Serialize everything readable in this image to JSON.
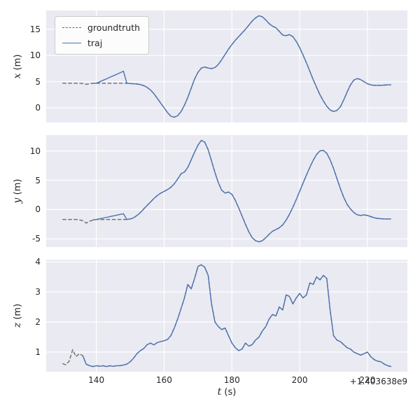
{
  "chart_data": {
    "type": "line",
    "title": "",
    "xlabel": "t (s)",
    "x_offset_text": "+1.403638e9",
    "xlim": [
      125.2,
      231.8
    ],
    "xticks": [
      140,
      160,
      180,
      200,
      220
    ],
    "grid": true,
    "colors": {
      "axes_bg": "#EAEAF2",
      "grid": "#FFFFFF",
      "groundtruth": "#6a6a6a",
      "traj": "#4C72B0",
      "text": "#262626"
    },
    "legend": {
      "position": "upper left",
      "entries": [
        {
          "label": "groundtruth",
          "color": "#6a6a6a",
          "dash": true
        },
        {
          "label": "traj",
          "color": "#4C72B0",
          "dash": false
        }
      ]
    },
    "subplots": [
      {
        "ylabel": "x (m)",
        "ylim": [
          -2.8,
          18.6
        ],
        "yticks": [
          0,
          5,
          10,
          15
        ],
        "show_x_tick_labels": false,
        "series": [
          {
            "name": "groundtruth",
            "color": "#6a6a6a",
            "dash": true,
            "t_start": 130,
            "t_step": 1,
            "y": [
              4.7,
              4.7,
              4.7,
              4.7,
              4.7,
              4.7,
              4.65,
              4.5,
              4.6,
              4.7,
              4.7,
              4.7,
              4.7,
              4.7,
              4.7,
              4.7,
              4.7,
              4.7,
              4.7,
              4.7,
              4.65,
              4.6,
              4.55,
              4.45,
              4.25,
              3.9,
              3.4,
              2.7,
              1.8,
              0.9,
              0.0,
              -0.9,
              -1.6,
              -1.8,
              -1.5,
              -0.7,
              0.5,
              2.0,
              3.8,
              5.5,
              6.8,
              7.6,
              7.8,
              7.6,
              7.5,
              7.7,
              8.3,
              9.2,
              10.2,
              11.2,
              12.1,
              12.9,
              13.6,
              14.3,
              15.0,
              15.8,
              16.6,
              17.2,
              17.6,
              17.4,
              16.8,
              16.1,
              15.6,
              15.3,
              14.6,
              13.9,
              13.8,
              14.0,
              13.6,
              12.7,
              11.5,
              10.1,
              8.6,
              7.0,
              5.4,
              3.9,
              2.5,
              1.3,
              0.3,
              -0.4,
              -0.7,
              -0.5,
              0.2,
              1.5,
              3.0,
              4.4,
              5.3,
              5.6,
              5.4,
              5.0,
              4.6,
              4.4,
              4.3,
              4.3,
              4.3,
              4.35,
              4.4,
              4.4
            ]
          },
          {
            "name": "traj",
            "color": "#4C72B0",
            "dash": false,
            "t_start": 139,
            "t_step": 1,
            "y": [
              4.7,
              4.7,
              4.98,
              5.27,
              5.55,
              5.84,
              6.12,
              6.41,
              6.7,
              7.0,
              4.7,
              4.65,
              4.6,
              4.55,
              4.45,
              4.25,
              3.9,
              3.4,
              2.7,
              1.8,
              0.9,
              0.0,
              -0.9,
              -1.6,
              -1.8,
              -1.5,
              -0.7,
              0.5,
              2.0,
              3.8,
              5.5,
              6.8,
              7.6,
              7.8,
              7.6,
              7.5,
              7.7,
              8.3,
              9.2,
              10.2,
              11.2,
              12.1,
              12.9,
              13.6,
              14.3,
              15.0,
              15.8,
              16.6,
              17.2,
              17.6,
              17.4,
              16.8,
              16.1,
              15.6,
              15.3,
              14.6,
              13.9,
              13.8,
              14.0,
              13.6,
              12.7,
              11.5,
              10.1,
              8.6,
              7.0,
              5.4,
              3.9,
              2.5,
              1.3,
              0.3,
              -0.4,
              -0.7,
              -0.5,
              0.2,
              1.5,
              3.0,
              4.4,
              5.3,
              5.6,
              5.4,
              5.0,
              4.6,
              4.4,
              4.3,
              4.3,
              4.3,
              4.35,
              4.4,
              4.4
            ]
          }
        ]
      },
      {
        "ylabel": "y (m)",
        "ylim": [
          -6.4,
          12.7
        ],
        "yticks": [
          -5,
          0,
          5,
          10
        ],
        "show_x_tick_labels": false,
        "series": [
          {
            "name": "groundtruth",
            "color": "#6a6a6a",
            "dash": true,
            "t_start": 130,
            "t_step": 1,
            "y": [
              -1.7,
              -1.7,
              -1.7,
              -1.7,
              -1.7,
              -1.75,
              -1.9,
              -2.3,
              -2.0,
              -1.8,
              -1.7,
              -1.7,
              -1.7,
              -1.7,
              -1.7,
              -1.7,
              -1.7,
              -1.7,
              -1.7,
              -1.7,
              -1.6,
              -1.4,
              -1.0,
              -0.5,
              0.1,
              0.7,
              1.3,
              1.9,
              2.4,
              2.8,
              3.1,
              3.4,
              3.8,
              4.4,
              5.2,
              6.1,
              6.4,
              7.2,
              8.5,
              9.8,
              11.0,
              11.8,
              11.5,
              10.2,
              8.3,
              6.3,
              4.6,
              3.3,
              2.8,
              3.0,
              2.6,
              1.6,
              0.3,
              -1.1,
              -2.5,
              -3.8,
              -4.8,
              -5.3,
              -5.5,
              -5.3,
              -4.8,
              -4.2,
              -3.7,
              -3.4,
              -3.1,
              -2.6,
              -1.8,
              -0.8,
              0.4,
              1.7,
              3.1,
              4.5,
              5.9,
              7.2,
              8.4,
              9.4,
              10.0,
              10.1,
              9.6,
              8.5,
              7.0,
              5.3,
              3.6,
              2.1,
              0.9,
              0.1,
              -0.5,
              -0.9,
              -1.0,
              -0.9,
              -1.0,
              -1.2,
              -1.4,
              -1.5,
              -1.55,
              -1.6,
              -1.6,
              -1.6
            ]
          },
          {
            "name": "traj",
            "color": "#4C72B0",
            "dash": false,
            "t_start": 139,
            "t_step": 1,
            "y": [
              -1.75,
              -1.7,
              -1.58,
              -1.45,
              -1.33,
              -1.2,
              -1.08,
              -0.95,
              -0.83,
              -0.7,
              -1.7,
              -1.6,
              -1.4,
              -1.0,
              -0.5,
              0.1,
              0.7,
              1.3,
              1.9,
              2.4,
              2.8,
              3.1,
              3.4,
              3.8,
              4.4,
              5.2,
              6.1,
              6.4,
              7.2,
              8.5,
              9.8,
              11.0,
              11.8,
              11.5,
              10.2,
              8.3,
              6.3,
              4.6,
              3.3,
              2.8,
              3.0,
              2.6,
              1.6,
              0.3,
              -1.1,
              -2.5,
              -3.8,
              -4.8,
              -5.3,
              -5.5,
              -5.3,
              -4.8,
              -4.2,
              -3.7,
              -3.4,
              -3.1,
              -2.6,
              -1.8,
              -0.8,
              0.4,
              1.7,
              3.1,
              4.5,
              5.9,
              7.2,
              8.4,
              9.4,
              10.0,
              10.1,
              9.6,
              8.5,
              7.0,
              5.3,
              3.6,
              2.1,
              0.9,
              0.1,
              -0.5,
              -0.9,
              -1.0,
              -0.9,
              -1.0,
              -1.2,
              -1.4,
              -1.5,
              -1.55,
              -1.6,
              -1.6,
              -1.6
            ]
          }
        ]
      },
      {
        "ylabel": "z (m)",
        "ylim": [
          0.35,
          4.07
        ],
        "yticks": [
          1,
          2,
          3,
          4
        ],
        "show_x_tick_labels": true,
        "series": [
          {
            "name": "groundtruth",
            "color": "#6a6a6a",
            "dash": true,
            "t_start": 130,
            "t_step": 1,
            "y": [
              0.62,
              0.58,
              0.7,
              1.08,
              0.85,
              0.95,
              0.88,
              0.6,
              0.55,
              0.52,
              0.55,
              0.53,
              0.55,
              0.52,
              0.55,
              0.53,
              0.55,
              0.55,
              0.57,
              0.6,
              0.68,
              0.8,
              0.95,
              1.05,
              1.12,
              1.25,
              1.3,
              1.24,
              1.32,
              1.35,
              1.38,
              1.42,
              1.55,
              1.8,
              2.1,
              2.45,
              2.8,
              3.25,
              3.1,
              3.45,
              3.85,
              3.9,
              3.82,
              3.55,
              2.6,
              2.0,
              1.85,
              1.75,
              1.8,
              1.55,
              1.3,
              1.15,
              1.05,
              1.1,
              1.3,
              1.2,
              1.25,
              1.4,
              1.5,
              1.7,
              1.85,
              2.1,
              2.25,
              2.2,
              2.5,
              2.4,
              2.9,
              2.85,
              2.6,
              2.8,
              2.95,
              2.8,
              2.9,
              3.3,
              3.25,
              3.5,
              3.4,
              3.55,
              3.45,
              2.4,
              1.55,
              1.4,
              1.35,
              1.25,
              1.15,
              1.1,
              1.0,
              0.95,
              0.9,
              0.95,
              1.0,
              0.85,
              0.75,
              0.7,
              0.68,
              0.6,
              0.55,
              0.52
            ]
          },
          {
            "name": "traj",
            "color": "#4C72B0",
            "dash": false,
            "t_start": 136,
            "t_step": 1,
            "y": [
              0.88,
              0.6,
              0.55,
              0.52,
              0.55,
              0.53,
              0.55,
              0.52,
              0.55,
              0.53,
              0.55,
              0.55,
              0.57,
              0.6,
              0.68,
              0.8,
              0.95,
              1.05,
              1.12,
              1.25,
              1.3,
              1.24,
              1.32,
              1.35,
              1.38,
              1.42,
              1.55,
              1.8,
              2.1,
              2.45,
              2.8,
              3.25,
              3.1,
              3.45,
              3.85,
              3.9,
              3.82,
              3.55,
              2.6,
              2.0,
              1.85,
              1.75,
              1.8,
              1.55,
              1.3,
              1.15,
              1.05,
              1.1,
              1.3,
              1.2,
              1.25,
              1.4,
              1.5,
              1.7,
              1.85,
              2.1,
              2.25,
              2.2,
              2.5,
              2.4,
              2.9,
              2.85,
              2.6,
              2.8,
              2.95,
              2.8,
              2.9,
              3.3,
              3.25,
              3.5,
              3.4,
              3.55,
              3.45,
              2.4,
              1.55,
              1.4,
              1.35,
              1.25,
              1.15,
              1.1,
              1.0,
              0.95,
              0.9,
              0.95,
              1.0,
              0.85,
              0.75,
              0.7,
              0.68,
              0.6,
              0.55,
              0.52
            ]
          }
        ]
      }
    ]
  }
}
